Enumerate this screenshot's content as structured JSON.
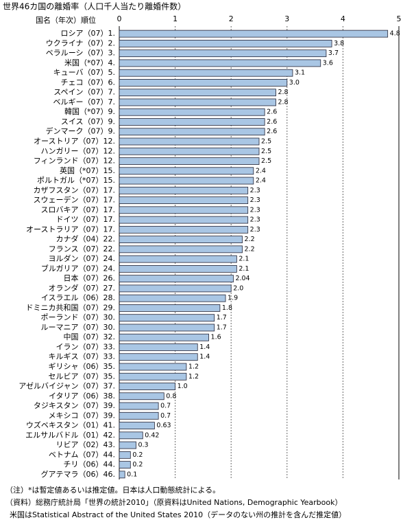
{
  "chart_data": {
    "type": "bar",
    "orientation": "horizontal",
    "title": "世界46カ国の離婚率（人口千人当たり離婚件数）",
    "category_header": "国名（年次）順位",
    "categories": [
      "ロシア（07）1.",
      "ウクライナ（07）2.",
      "ベラルーシ（07）3.",
      "米国（*07）4.",
      "キューバ（07）5.",
      "チェコ（07）6.",
      "スペイン（07）7.",
      "ベルギー（07）7.",
      "韓国（*07）9.",
      "スイス（07）9.",
      "デンマーク（07）9.",
      "オーストリア（07）12.",
      "ハンガリー（07）12.",
      "フィンランド（07）12.",
      "英国（*07）15.",
      "ポルトガル（*07）15.",
      "カザフスタン（07）17.",
      "スウェーデン（07）17.",
      "スロバキア（07）17.",
      "ドイツ（07）17.",
      "オーストラリア（07）17.",
      "カナダ（04）22.",
      "フランス（07）22.",
      "ヨルダン（07）24.",
      "ブルガリア（07）24.",
      "日本（07）26.",
      "オランダ（07）27.",
      "イスラエル（06）28.",
      "ドミニカ共和国（07）29.",
      "ポーランド（07）30.",
      "ルーマニア（07）30.",
      "中国（07）32.",
      "イラン（07）33.",
      "キルギス（07）33.",
      "ギリシャ（06）35.",
      "セルビア（07）35.",
      "アゼルバイジャン（07）37.",
      "イタリア（06）38.",
      "タジキスタン（07）39.",
      "メキシコ（07）39.",
      "ウズベキスタン（01）41.",
      "エルサルバドル（01）42.",
      "リビア（02）43.",
      "ベトナム（07）44.",
      "チリ（06）44.",
      "グアテマラ（06）46."
    ],
    "values": [
      4.8,
      3.8,
      3.7,
      3.6,
      3.1,
      3.0,
      2.8,
      2.8,
      2.6,
      2.6,
      2.6,
      2.5,
      2.5,
      2.5,
      2.4,
      2.4,
      2.3,
      2.3,
      2.3,
      2.3,
      2.3,
      2.2,
      2.2,
      2.1,
      2.1,
      2.04,
      2.0,
      1.9,
      1.8,
      1.7,
      1.7,
      1.6,
      1.4,
      1.4,
      1.2,
      1.2,
      1.0,
      0.8,
      0.7,
      0.7,
      0.63,
      0.42,
      0.3,
      0.2,
      0.2,
      0.1
    ],
    "value_labels": [
      "4.8",
      "3.8",
      "3.7",
      "3.6",
      "3.1",
      "3.0",
      "2.8",
      "2.8",
      "2.6",
      "2.6",
      "2.6",
      "2.5",
      "2.5",
      "2.5",
      "2.4",
      "2.4",
      "2.3",
      "2.3",
      "2.3",
      "2.3",
      "2.3",
      "2.2",
      "2.2",
      "2.1",
      "2.1",
      "2.04",
      "2.0",
      "1.9",
      "1.8",
      "1.7",
      "1.7",
      "1.6",
      "1.4",
      "1.4",
      "1.2",
      "1.2",
      "1.0",
      "0.8",
      "0.7",
      "0.7",
      "0.63",
      "0.42",
      "0.3",
      "0.2",
      "0.2",
      "0.1"
    ],
    "color": "#a9c6e4",
    "xlim": [
      0,
      5
    ],
    "xticks": [
      0,
      1,
      2,
      3,
      4,
      5
    ],
    "grid": true,
    "notes": [
      "（注）*は暫定値あるいは推定値。日本は人口動態統計による。",
      "（資料）総務庁統計局「世界の統計2010」（原資料はUnited Nations, Demographic Yearbook）",
      "米国はStatistical Abstract of the United States 2010（データのない州の推計を含んだ推定値）"
    ]
  }
}
